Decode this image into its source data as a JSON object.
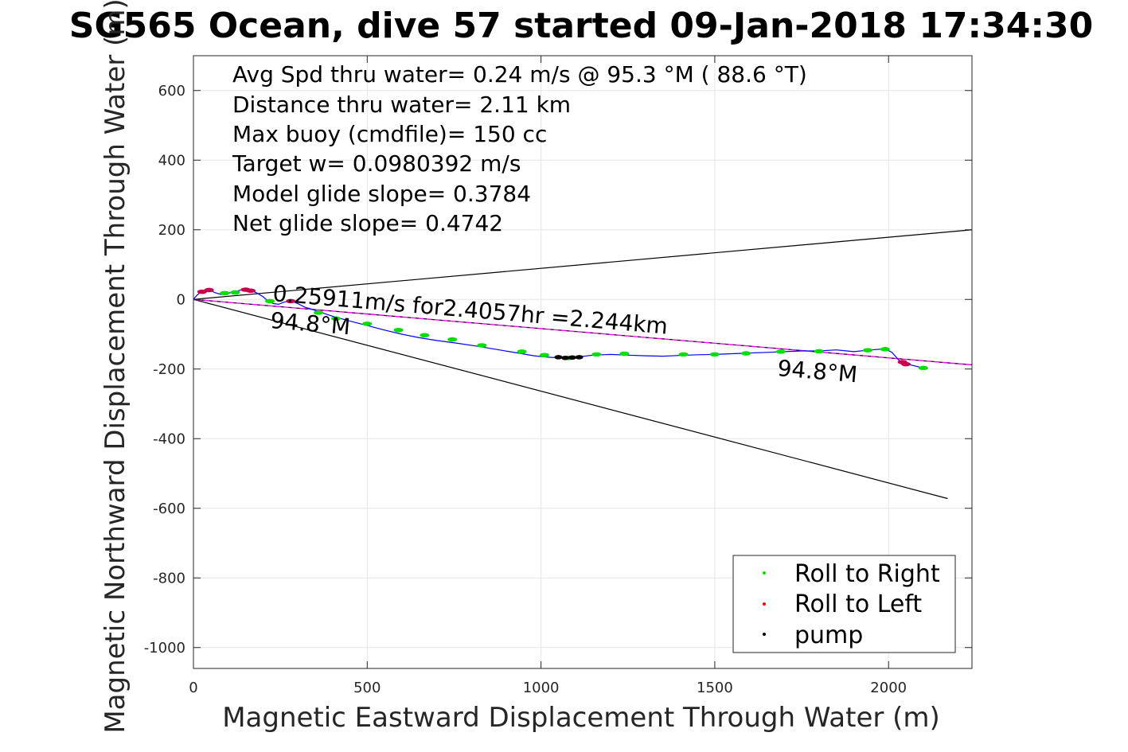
{
  "title": "SG565 Ocean, dive 57 started 09-Jan-2018 17:34:30",
  "stats": [
    "Avg Spd thru water=  0.24 m/s @  95.3 °M ( 88.6 °T)",
    "Distance thru water=  2.11 km",
    "Max buoy (cmdfile)= 150 cc",
    "Target w= 0.0980392 m/s",
    "Model glide slope= 0.3784",
    "Net glide slope= 0.4742"
  ],
  "annotations": {
    "speed_line": "0.25911m/s for2.4057hr =2.244km",
    "heading_near": "94.8°M",
    "heading_far": "94.8°M"
  },
  "colors": {
    "track": "#0000ff",
    "roll_right": "#00e000",
    "roll_left": "#c8004b",
    "pump": "#000000",
    "heading_line": "#ff00ff",
    "cone_lines": "#000000"
  },
  "chart_data": {
    "type": "line",
    "title": "SG565 Ocean, dive 57 started 09-Jan-2018 17:34:30",
    "xlabel": "Magnetic Eastward Displacement Through Water (m)",
    "ylabel": "Magnetic Northward Displacement Through Water (m)",
    "xlim": [
      0,
      2240
    ],
    "ylim": [
      -1060,
      700
    ],
    "xticks": [
      0,
      500,
      1000,
      1500,
      2000
    ],
    "yticks": [
      -1000,
      -800,
      -600,
      -400,
      -200,
      0,
      200,
      400,
      600
    ],
    "grid": true,
    "legend_position": "bottom-right",
    "legend": [
      "Roll to Right",
      "Roll to Left",
      "pump"
    ],
    "track": {
      "x": [
        0,
        10,
        25,
        45,
        60,
        80,
        100,
        120,
        140,
        160,
        180,
        200,
        215,
        230,
        245,
        260,
        280,
        300,
        320,
        340,
        360,
        400,
        450,
        500,
        550,
        600,
        650,
        700,
        760,
        820,
        880,
        940,
        980,
        1020,
        1060,
        1100,
        1150,
        1200,
        1250,
        1300,
        1350,
        1400,
        1450,
        1500,
        1550,
        1600,
        1650,
        1700,
        1750,
        1800,
        1850,
        1880,
        1900,
        1950,
        1990,
        2010,
        2030,
        2050,
        2100
      ],
      "y": [
        0,
        12,
        24,
        28,
        20,
        14,
        18,
        22,
        28,
        26,
        20,
        8,
        -5,
        -12,
        -14,
        -8,
        -4,
        -12,
        -22,
        -28,
        -35,
        -48,
        -62,
        -75,
        -88,
        -100,
        -110,
        -118,
        -126,
        -135,
        -145,
        -155,
        -162,
        -166,
        -168,
        -166,
        -160,
        -158,
        -160,
        -162,
        -163,
        -161,
        -159,
        -158,
        -156,
        -154,
        -152,
        -150,
        -148,
        -148,
        -145,
        -148,
        -150,
        -145,
        -142,
        -152,
        -175,
        -185,
        -197
      ]
    },
    "series": [
      {
        "name": "Roll to Right",
        "x": [
          90,
          120,
          220,
          360,
          410,
          500,
          590,
          665,
          745,
          830,
          945,
          1010,
          1080,
          1160,
          1240,
          1410,
          1500,
          1590,
          1690,
          1800,
          1940,
          1990,
          2100
        ],
        "y": [
          18,
          20,
          -5,
          -38,
          -55,
          -70,
          -88,
          -103,
          -115,
          -132,
          -150,
          -160,
          -168,
          -158,
          -156,
          -158,
          -158,
          -155,
          -150,
          -149,
          -146,
          -143,
          -197
        ]
      },
      {
        "name": "Roll to Left",
        "x": [
          25,
          45,
          150,
          165,
          280,
          2040,
          2050
        ],
        "y": [
          22,
          27,
          28,
          25,
          -5,
          -180,
          -186
        ]
      },
      {
        "name": "pump",
        "x": [
          1050,
          1070,
          1090,
          1110
        ],
        "y": [
          -166,
          -168,
          -167,
          -166
        ]
      }
    ],
    "reference_lines": [
      {
        "x": [
          0,
          2240
        ],
        "y": [
          0,
          200
        ]
      },
      {
        "x": [
          0,
          2170
        ],
        "y": [
          0,
          -572
        ]
      },
      {
        "x": [
          0,
          2240
        ],
        "y": [
          0,
          -188
        ]
      }
    ]
  }
}
